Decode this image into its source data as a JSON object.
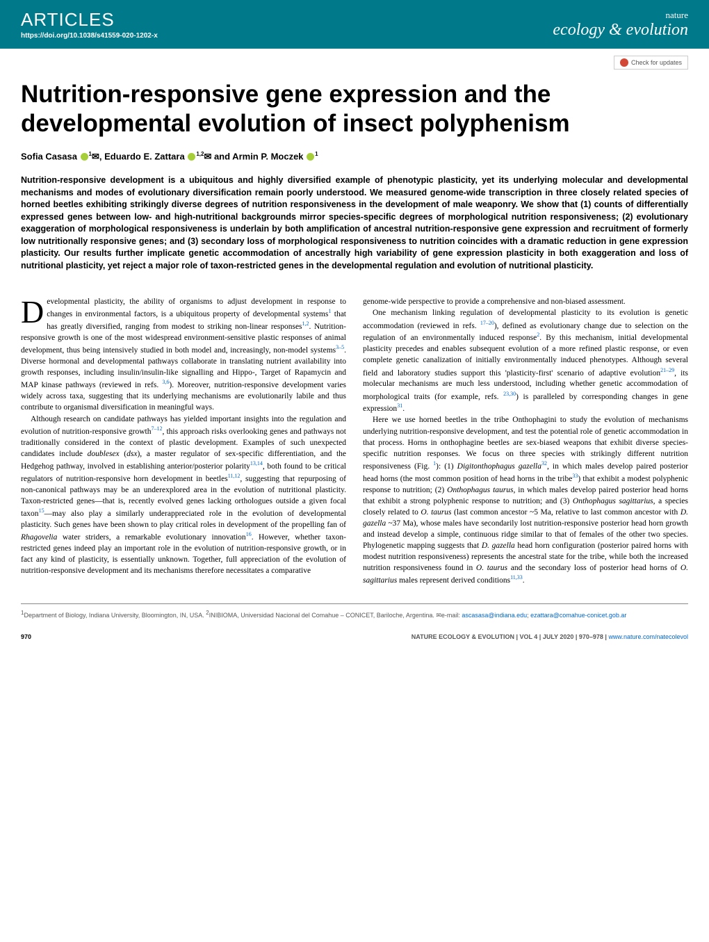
{
  "header": {
    "section": "ARTICLES",
    "doi": "https://doi.org/10.1038/s41559-020-1202-x",
    "publisher": "nature",
    "journal": "ecology & evolution",
    "check_updates": "Check for updates"
  },
  "title": "Nutrition-responsive gene expression and the developmental evolution of insect polyphenism",
  "authors_html": "Sofia Casasa <span class='orcid'></span><sup>1</sup>✉, Eduardo E. Zattara <span class='orcid'></span><sup>1,2</sup>✉ and Armin P. Moczek <span class='orcid'></span><sup>1</sup>",
  "abstract": "Nutrition-responsive development is a ubiquitous and highly diversified example of phenotypic plasticity, yet its underlying molecular and developmental mechanisms and modes of evolutionary diversification remain poorly understood. We measured genome-wide transcription in three closely related species of horned beetles exhibiting strikingly diverse degrees of nutrition responsiveness in the development of male weaponry. We show that (1) counts of differentially expressed genes between low- and high-nutritional backgrounds mirror species-specific degrees of morphological nutrition responsiveness; (2) evolutionary exaggeration of morphological responsiveness is underlain by both amplification of ancestral nutrition-responsive gene expression and recruitment of formerly low nutritionally responsive genes; and (3) secondary loss of morphological responsiveness to nutrition coincides with a dramatic reduction in gene expression plasticity. Our results further implicate genetic accommodation of ancestrally high variability of gene expression plasticity in both exaggeration and loss of nutritional plasticity, yet reject a major role of taxon-restricted genes in the developmental regulation and evolution of nutritional plasticity.",
  "col1": {
    "p1": "evelopmental plasticity, the ability of organisms to adjust development in response to changes in environmental factors, is a ubiquitous property of developmental systems<span class='ref'>1</span> that has greatly diversified, ranging from modest to striking non-linear responses<span class='ref'>1,2</span>. Nutrition-responsive growth is one of the most widespread environment-sensitive plastic responses of animal development, thus being intensively studied in both model and, increasingly, non-model systems<span class='ref'>3–5</span>. Diverse hormonal and developmental pathways collaborate in translating nutrient availability into growth responses, including insulin/insulin-like signalling and Hippo-, Target of Rapamycin and MAP kinase pathways (reviewed in refs. <span class='ref'>3,6</span>). Moreover, nutrition-responsive development varies widely across taxa, suggesting that its underlying mechanisms are evolutionarily labile and thus contribute to organismal diversification in meaningful ways.",
    "p2": "Although research on candidate pathways has yielded important insights into the regulation and evolution of nutrition-responsive growth<span class='ref'>7–12</span>, this approach risks overlooking genes and pathways not traditionally considered in the context of plastic development. Examples of such unexpected candidates include <span class='italic'>doublesex</span> (<span class='italic'>dsx</span>), a master regulator of sex-specific differentiation, and the Hedgehog pathway, involved in establishing anterior/posterior polarity<span class='ref'>13,14</span>, both found to be critical regulators of nutrition-responsive horn development in beetles<span class='ref'>11,12</span>, suggesting that repurposing of non-canonical pathways may be an underexplored area in the evolution of nutritional plasticity. Taxon-restricted genes—that is, recently evolved genes lacking orthologues outside a given focal taxon<span class='ref'>15</span>—may also play a similarly underappreciated role in the evolution of developmental plasticity. Such genes have been shown to play critical roles in development of the propelling fan of <span class='italic'>Rhagovelia</span> water striders, a remarkable evolutionary innovation<span class='ref'>16</span>. However, whether taxon-restricted genes indeed play an important role in the evolution of nutrition-responsive growth, or in fact any kind of plasticity, is essentially unknown. Together, full appreciation of the evolution of nutrition-responsive development and its mechanisms therefore necessitates a comparative"
  },
  "col2": {
    "p1": "genome-wide perspective to provide a comprehensive and non-biased assessment.",
    "p2": "One mechanism linking regulation of developmental plasticity to its evolution is genetic accommodation (reviewed in refs. <span class='ref'>17–20</span>), defined as evolutionary change due to selection on the regulation of an environmentally induced response<span class='ref'>2</span>. By this mechanism, initial developmental plasticity precedes and enables subsequent evolution of a more refined plastic response, or even complete genetic canalization of initially environmentally induced phenotypes. Although several field and laboratory studies support this 'plasticity-first' scenario of adaptive evolution<span class='ref'>21–29</span>, its molecular mechanisms are much less understood, including whether genetic accommodation of morphological traits (for example, refs. <span class='ref'>23,30</span>) is paralleled by corresponding changes in gene expression<span class='ref'>31</span>.",
    "p3": "Here we use horned beetles in the tribe Onthophagini to study the evolution of mechanisms underlying nutrition-responsive development, and test the potential role of genetic accommodation in that process. Horns in onthophagine beetles are sex-biased weapons that exhibit diverse species-specific nutrition responses. We focus on three species with strikingly different nutrition responsiveness (Fig. <span class='ref'>1</span>): (1) <span class='italic'>Digitonthophagus gazella</span><span class='ref'>32</span>, in which males develop paired posterior head horns (the most common position of head horns in the tribe<span class='ref'>33</span>) that exhibit a modest polyphenic response to nutrition; (2) <span class='italic'>Onthophagus taurus</span>, in which males develop paired posterior head horns that exhibit a strong polyphenic response to nutrition; and (3) <span class='italic'>Onthophagus sagittarius</span>, a species closely related to <span class='italic'>O. taurus</span> (last common ancestor ~5 Ma, relative to last common ancestor with <span class='italic'>D. gazella</span> ~37 Ma), whose males have secondarily lost nutrition-responsive posterior head horn growth and instead develop a simple, continuous ridge similar to that of females of the other two species. Phylogenetic mapping suggests that <span class='italic'>D. gazella</span> head horn configuration (posterior paired horns with modest nutrition responsiveness) represents the ancestral state for the tribe, while both the increased nutrition responsiveness found in <span class='italic'>O. taurus</span> and the secondary loss of posterior head horns of <span class='italic'>O. sagittarius</span> males represent derived conditions<span class='ref'>11,33</span>."
  },
  "affiliations": "<sup>1</sup>Department of Biology, Indiana University, Bloomington, IN, USA. <sup>2</sup>INIBIOMA, Universidad Nacional del Comahue – CONICET, Bariloche, Argentina. ✉e-mail: <span class='email'>ascasasa@indiana.edu</span>; <span class='email'>ezattara@comahue-conicet.gob.ar</span>",
  "footer": {
    "page": "970",
    "citation": "NATURE ECOLOGY & EVOLUTION | VOL 4 | JULY 2020 | 970–978 | ",
    "link": "www.nature.com/natecolevol"
  },
  "colors": {
    "teal": "#007a8a",
    "link_blue": "#0066cc",
    "orcid_green": "#a6ce39",
    "text_black": "#000000",
    "gray": "#555555"
  }
}
